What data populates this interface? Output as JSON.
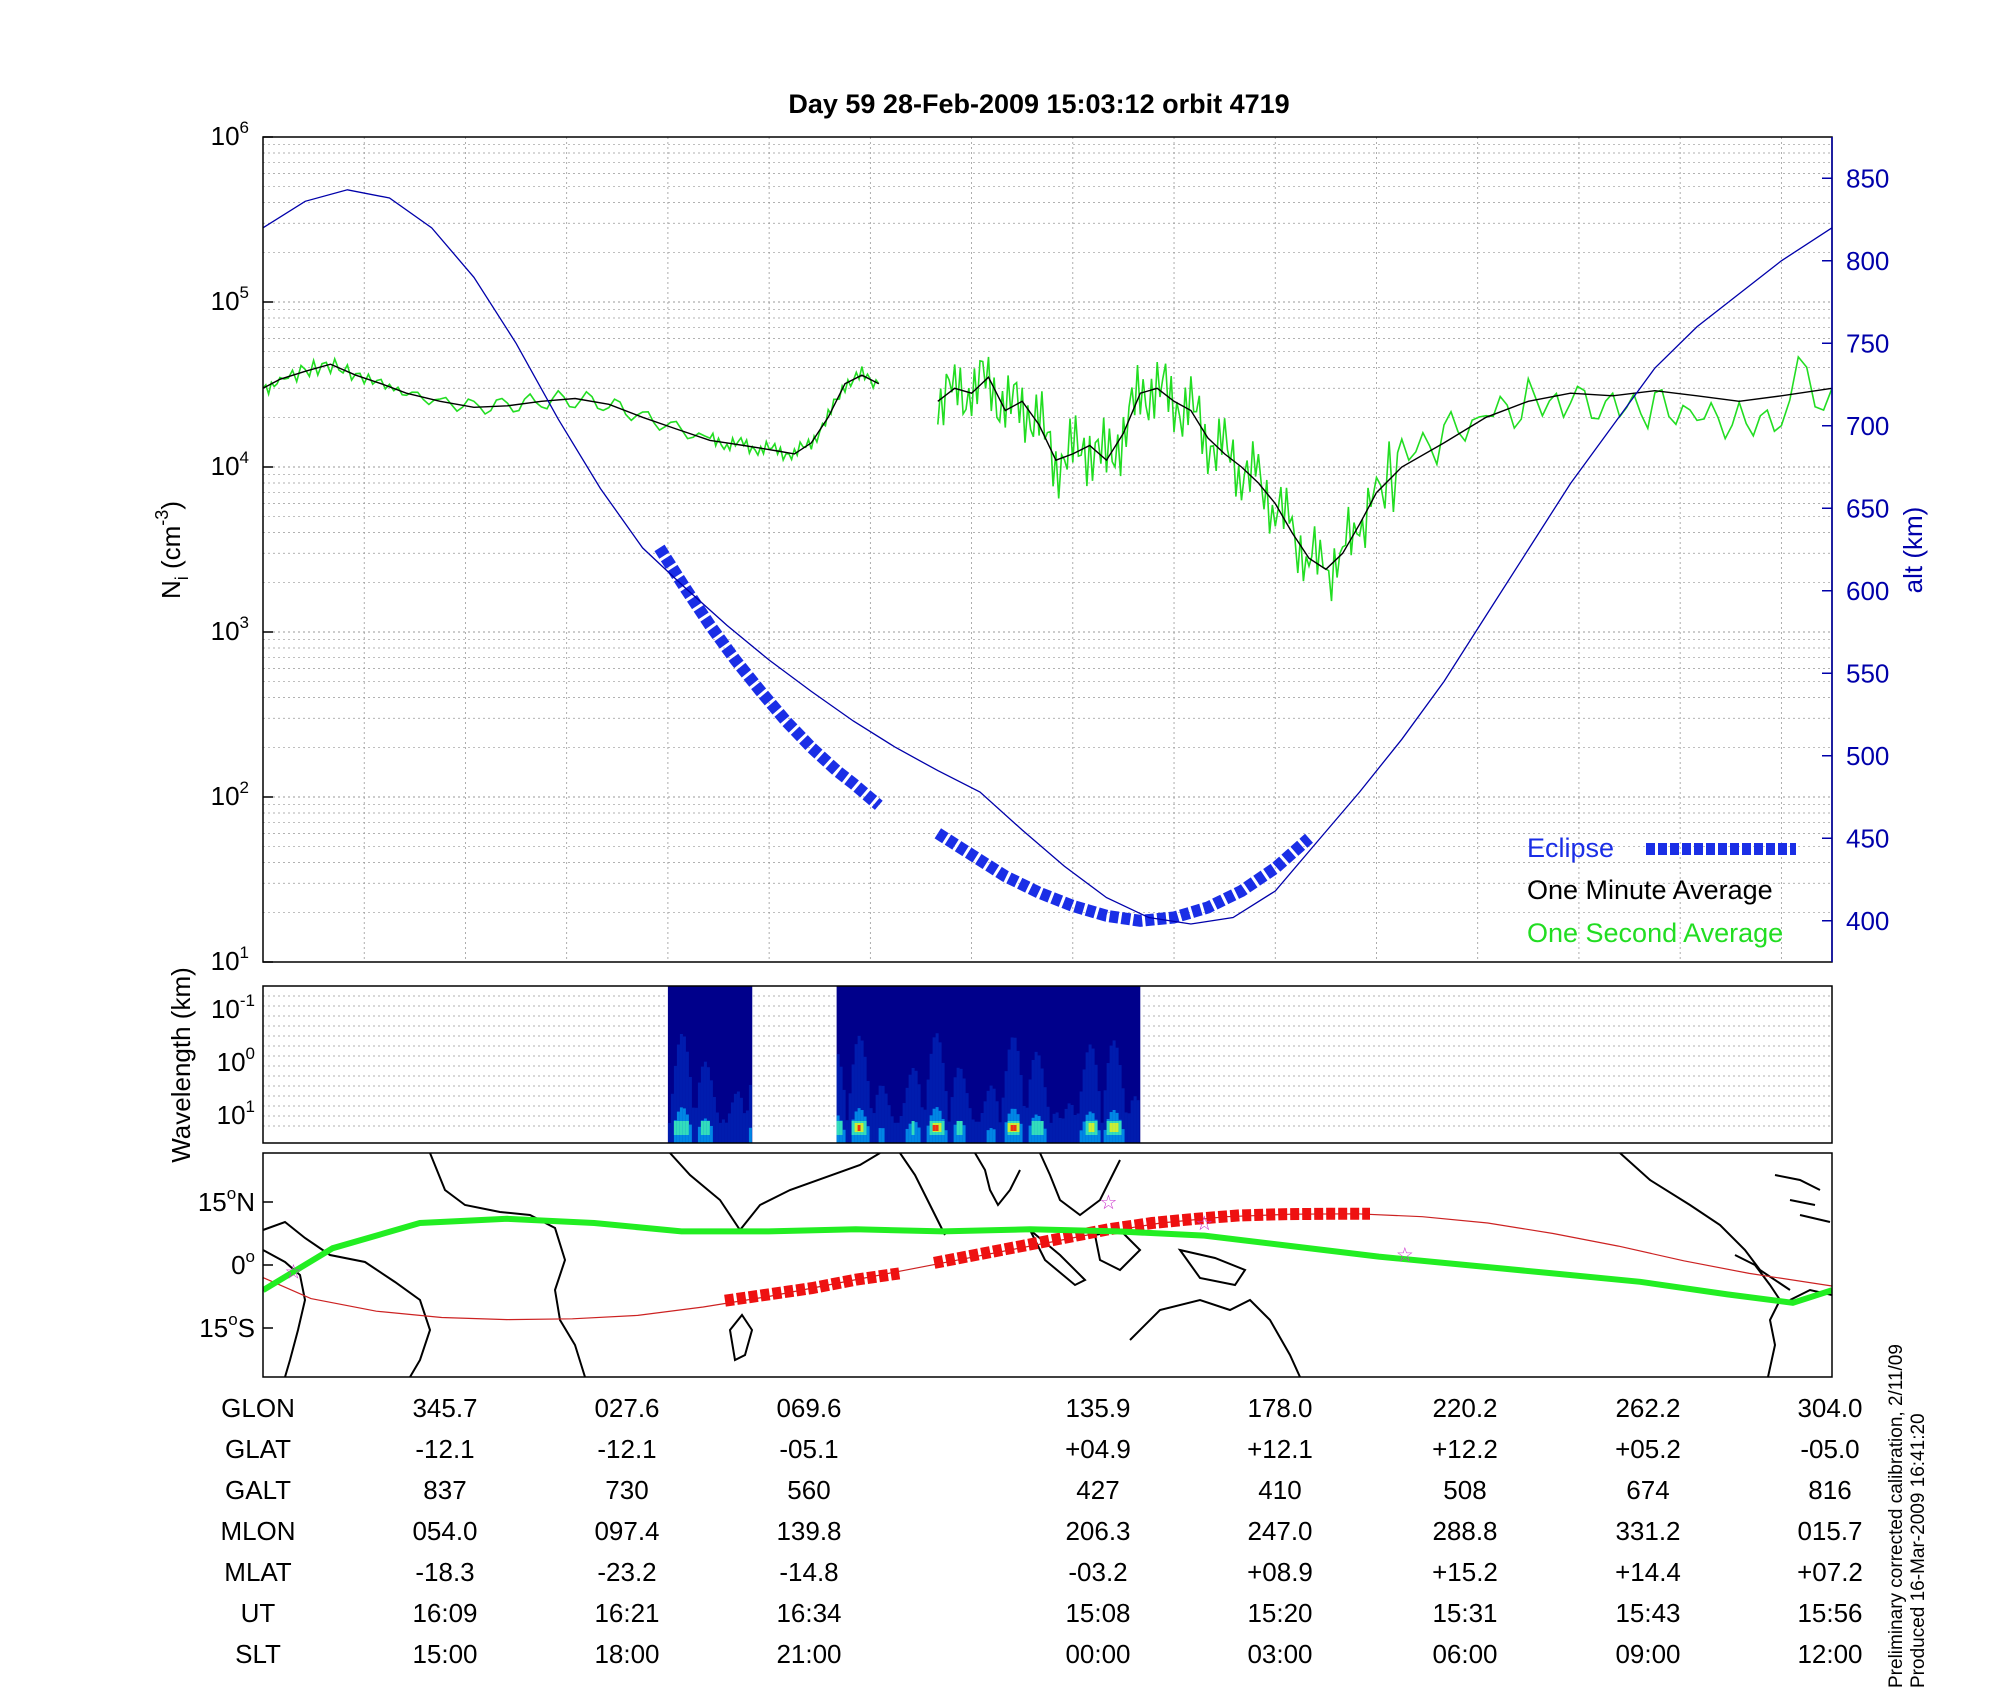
{
  "title": "Day 59  28-Feb-2009 15:03:12   orbit 4719",
  "side_note": {
    "line1": "Preliminary corrected calibration, 2/11/09",
    "line2": "Produced 16-Mar-2009 16:41:20"
  },
  "colors": {
    "altitude": "#0000aa",
    "eclipse": "#1a2ee6",
    "minute_avg": "#000000",
    "second_avg": "#22dd22",
    "track_thin": "#cc2222",
    "track_eclipse": "#ee1111",
    "magnetic_track": "#22ee22",
    "star_marker": "#cc33cc"
  },
  "chart_data": [
    {
      "type": "line",
      "panel": "ion density and altitude",
      "ylabel": "N",
      "ylabel_sub": "i",
      "ylabel_unit": " (cm",
      "ylabel_exp": "-3",
      "ylabel_close": ")",
      "yscale": "log",
      "ylim": [
        10,
        1000000
      ],
      "ytick_base": "10",
      "ytick_exponents": [
        "1",
        "2",
        "3",
        "4",
        "5",
        "6"
      ],
      "y2label": "alt (km)",
      "y2lim": [
        375,
        875
      ],
      "y2ticks": [
        "400",
        "450",
        "500",
        "550",
        "600",
        "650",
        "700",
        "750",
        "800",
        "850"
      ],
      "x_grid_ut_minutes": [
        0,
        12,
        24,
        36,
        48,
        60,
        72,
        84,
        96,
        108,
        120,
        132,
        144,
        156,
        168,
        180
      ],
      "xlim_ut_minutes": [
        0,
        186
      ],
      "grid": true,
      "legend_position": "bottom-right",
      "legend": [
        "Eclipse",
        "One Minute Average",
        "One Second Average"
      ],
      "series": [
        {
          "name": "One Minute Average",
          "x": [
            0,
            2,
            5,
            8,
            11,
            14,
            17,
            21,
            25,
            29,
            33,
            37,
            41,
            45,
            49,
            53,
            55,
            57,
            59,
            61,
            63,
            65,
            67,
            69,
            71,
            73
          ],
          "y": [
            30000,
            34000,
            38000,
            42000,
            36000,
            32000,
            28000,
            25000,
            23000,
            23500,
            25000,
            26000,
            24000,
            20000,
            17000,
            14500,
            14000,
            13500,
            13000,
            12500,
            12000,
            14000,
            20000,
            32000,
            36000,
            32000
          ]
        },
        {
          "name": "One Minute Average",
          "x": [
            80,
            82,
            84,
            86,
            88,
            90,
            92,
            94,
            96,
            98,
            100,
            102,
            104,
            106,
            108,
            110,
            112,
            114,
            116,
            118,
            120,
            122,
            124,
            126,
            128,
            130,
            132,
            135,
            140,
            145,
            150,
            155,
            160,
            165,
            170,
            175,
            180,
            186
          ],
          "y": [
            25000,
            30000,
            28000,
            35000,
            22000,
            25000,
            18000,
            11000,
            12000,
            13500,
            11000,
            16000,
            28000,
            30000,
            25000,
            22000,
            15000,
            12000,
            10000,
            8000,
            6000,
            4000,
            2800,
            2400,
            3000,
            4500,
            7000,
            10000,
            14000,
            20000,
            25000,
            28000,
            27000,
            29000,
            27000,
            25000,
            27000,
            30000
          ]
        },
        {
          "name": "Eclipse",
          "x": [
            47,
            50,
            53,
            56,
            59,
            62,
            65,
            68,
            70,
            73,
            80,
            84,
            88,
            92,
            96,
            100,
            104,
            108,
            112,
            116,
            120,
            124
          ],
          "y_alt_km": [
            626,
            602,
            579,
            558,
            539,
            521,
            505,
            491,
            483,
            470,
            453,
            440,
            427,
            417,
            409,
            403,
            400,
            402,
            408,
            418,
            432,
            450
          ]
        },
        {
          "name": "altitude",
          "x": [
            0,
            5,
            10,
            15,
            20,
            25,
            30,
            35,
            40,
            45,
            50,
            55,
            60,
            65,
            70,
            75,
            80,
            85,
            90,
            95,
            100,
            105,
            110,
            115,
            120,
            125,
            130,
            135,
            140,
            145,
            150,
            155,
            160,
            165,
            170,
            175,
            180,
            186
          ],
          "y_alt_km": [
            820,
            836,
            843,
            838,
            820,
            790,
            750,
            704,
            662,
            626,
            602,
            579,
            558,
            539,
            521,
            505,
            491,
            478,
            455,
            433,
            414,
            402,
            398,
            402,
            418,
            448,
            478,
            510,
            545,
            585,
            625,
            665,
            700,
            735,
            760,
            780,
            800,
            820
          ]
        }
      ]
    },
    {
      "type": "heatmap",
      "panel": "spectrogram",
      "ylabel": "Wavelength (km)",
      "ytick_base": "10",
      "ytick_exponents": [
        "-1",
        "0",
        "1"
      ],
      "segments_ut_minutes": [
        [
          48,
          58
        ],
        [
          68,
          104
        ]
      ],
      "colormap": [
        "#00008b",
        "#0033cc",
        "#0099ee",
        "#33ddbb",
        "#ccee33",
        "#ee3311"
      ]
    },
    {
      "type": "line",
      "panel": "ground track map",
      "yticks": [
        {
          "base": "15",
          "sup": "o",
          "suffix": "N"
        },
        {
          "base": "0",
          "sup": "o",
          "suffix": ""
        },
        {
          "base": "15",
          "sup": "o",
          "suffix": "S"
        }
      ],
      "series": [
        {
          "name": "ground track",
          "lon": [
            -56,
            -45,
            -30,
            -15,
            0,
            15,
            30,
            45,
            60,
            75,
            90,
            105,
            120,
            135,
            150,
            165,
            180,
            195,
            210,
            225,
            240,
            255,
            270,
            285,
            304
          ],
          "lat": [
            -3,
            -8,
            -11,
            -12.5,
            -13,
            -12.8,
            -12,
            -10,
            -7.5,
            -4.5,
            -1.5,
            1.5,
            4.5,
            7.5,
            10,
            11.5,
            12.1,
            12.2,
            11.5,
            10,
            7.5,
            4.5,
            1,
            -2,
            -5
          ]
        },
        {
          "name": "eclipse track",
          "lon": [
            50,
            60,
            70,
            80,
            90,
            98,
            108,
            118,
            128,
            138,
            148,
            158,
            168,
            178,
            188,
            198
          ],
          "lat": [
            -8.5,
            -7,
            -5.5,
            -3.5,
            -2,
            0.5,
            2.5,
            4.5,
            6.5,
            8.5,
            10,
            11,
            11.8,
            12.1,
            12.2,
            12.2
          ]
        },
        {
          "name": "magnetic equator",
          "lon": [
            -56,
            -40,
            -20,
            0,
            20,
            40,
            60,
            80,
            100,
            120,
            140,
            160,
            180,
            200,
            220,
            240,
            260,
            280,
            295,
            304
          ],
          "lat": [
            -6,
            4,
            10,
            11,
            10,
            8,
            8,
            8.5,
            8,
            8.5,
            8,
            7,
            4.5,
            2,
            0,
            -2,
            -4,
            -7,
            -9,
            -6
          ]
        }
      ],
      "markers": [
        [
          -49,
          -1.5
        ],
        [
          138,
          15
        ],
        [
          160,
          10
        ],
        [
          206,
          2.5
        ]
      ]
    }
  ],
  "ephemeris": {
    "labels": [
      "GLON",
      "GLAT",
      "GALT",
      "MLON",
      "MLAT",
      "UT",
      "SLT"
    ],
    "columns": [
      [
        "345.7",
        "-12.1",
        "837",
        "054.0",
        "-18.3",
        "16:09",
        "15:00"
      ],
      [
        "027.6",
        "-12.1",
        "730",
        "097.4",
        "-23.2",
        "16:21",
        "18:00"
      ],
      [
        "069.6",
        "-05.1",
        "560",
        "139.8",
        "-14.8",
        "16:34",
        "21:00"
      ],
      [
        "135.9",
        "+04.9",
        "427",
        "206.3",
        "-03.2",
        "15:08",
        "00:00"
      ],
      [
        "178.0",
        "+12.1",
        "410",
        "247.0",
        "+08.9",
        "15:20",
        "03:00"
      ],
      [
        "220.2",
        "+12.2",
        "508",
        "288.8",
        "+15.2",
        "15:31",
        "06:00"
      ],
      [
        "262.2",
        "+05.2",
        "674",
        "331.2",
        "+14.4",
        "15:43",
        "09:00"
      ],
      [
        "304.0",
        "-05.0",
        "816",
        "015.7",
        "+07.2",
        "15:56",
        "12:00"
      ]
    ]
  }
}
